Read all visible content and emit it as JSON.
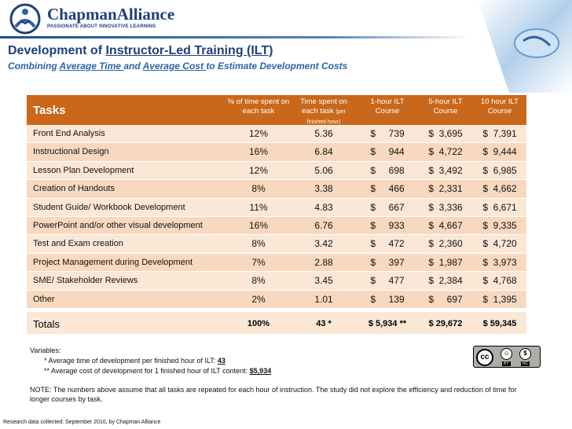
{
  "brand": {
    "name": "ChapmanAlliance",
    "tagline": "PASSIONATE ABOUT INNOVATIVE LEARNING"
  },
  "title": {
    "pre": "Development of ",
    "underlined": "Instructor-Led Training (ILT)"
  },
  "subtitle": {
    "a": "Combining ",
    "b": "Average Time ",
    "c": "and ",
    "d": "Average Cost ",
    "e": "to Estimate Development Costs"
  },
  "table": {
    "headers": {
      "tasks": "Tasks",
      "pct_line1": "% of time spent on",
      "pct_line2": "each task",
      "time_line1": "Time spent on",
      "time_line2a": "each task ",
      "time_line2b": "(per",
      "time_line3": "finished hour)",
      "h1_line1": "1-hour ILT",
      "h1_line2": "Course",
      "h5_line1": "5-hour ILT",
      "h5_line2": "Course",
      "h10_line1": "10 hour ILT",
      "h10_line2": "Course"
    },
    "rows": [
      {
        "task": "Front End Analysis",
        "pct": "12%",
        "time": "5.36",
        "c1": "$     739",
        "c5": "$  3,695",
        "c10": "$  7,391"
      },
      {
        "task": "Instructional Design",
        "pct": "16%",
        "time": "6.84",
        "c1": "$     944",
        "c5": "$  4,722",
        "c10": "$  9,444"
      },
      {
        "task": "Lesson Plan Development",
        "pct": "12%",
        "time": "5.06",
        "c1": "$     698",
        "c5": "$  3,492",
        "c10": "$  6,985"
      },
      {
        "task": "Creation of Handouts",
        "pct": "8%",
        "time": "3.38",
        "c1": "$     466",
        "c5": "$  2,331",
        "c10": "$  4,662"
      },
      {
        "task": "Student Guide/ Workbook Development",
        "pct": "11%",
        "time": "4.83",
        "c1": "$     667",
        "c5": "$  3,336",
        "c10": "$  6,671"
      },
      {
        "task": "PowerPoint and/or other visual development",
        "pct": "16%",
        "time": "6.76",
        "c1": "$     933",
        "c5": "$  4,667",
        "c10": "$  9,335"
      },
      {
        "task": "Test and Exam creation",
        "pct": "8%",
        "time": "3.42",
        "c1": "$     472",
        "c5": "$  2,360",
        "c10": "$  4,720"
      },
      {
        "task": "Project Management during Development",
        "pct": "7%",
        "time": "2.88",
        "c1": "$     397",
        "c5": "$  1,987",
        "c10": "$  3,973"
      },
      {
        "task": "SME/ Stakeholder Reviews",
        "pct": "8%",
        "time": "3.45",
        "c1": "$     477",
        "c5": "$  2,384",
        "c10": "$  4,768"
      },
      {
        "task": "Other",
        "pct": "2%",
        "time": "1.01",
        "c1": "$     139",
        "c5": "$     697",
        "c10": "$  1,395"
      }
    ],
    "totals": {
      "task": "Totals",
      "pct": "100%",
      "time": "43 *",
      "c1": "$   5,934 **",
      "c5": "$ 29,672",
      "c10": "$ 59,345"
    }
  },
  "variables": {
    "heading": "Variables:",
    "v1_text": "*   Average time of development per finished hour of ILT: ",
    "v1_value": "43",
    "v2_text": "**  Average cost of development for 1 finished hour of ILT content: ",
    "v2_value": "$5,934"
  },
  "note": "NOTE: The numbers above assume that all tasks are repeated for each hour of instruction. The study did not explore the efficiency and reduction of time for longer courses by task.",
  "footer": "Research data collected: September 2010, by Chapman Alliance",
  "license": {
    "cc": "cc",
    "by": "BY",
    "nc": "NC"
  }
}
